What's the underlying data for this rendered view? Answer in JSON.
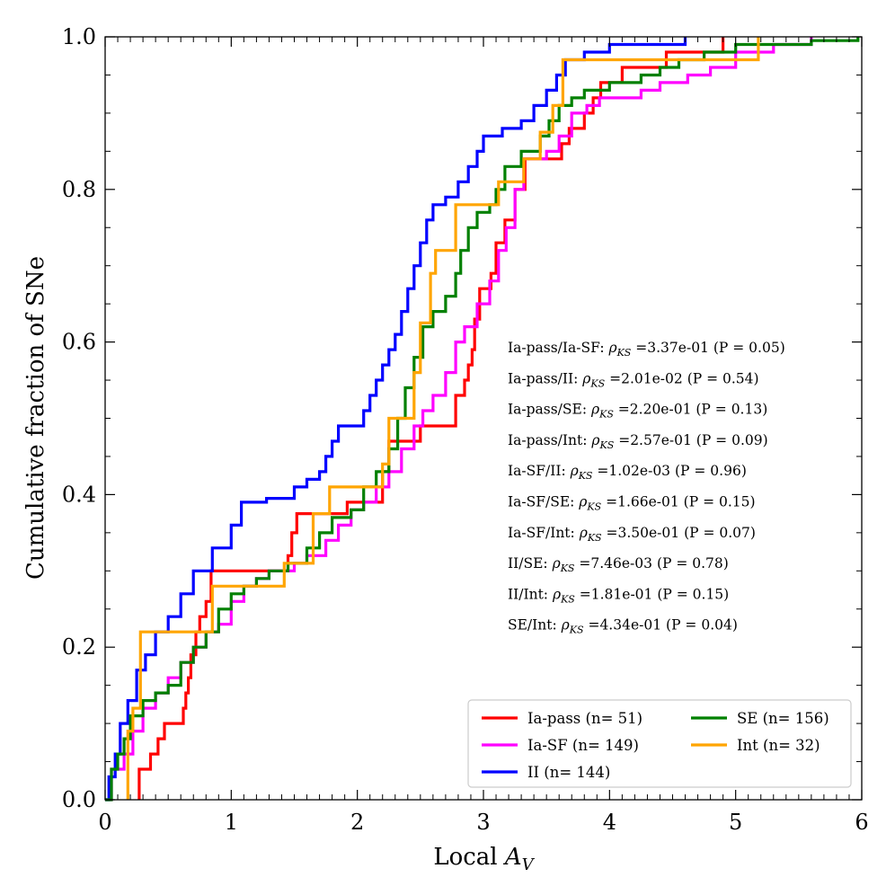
{
  "chart_data": {
    "type": "line",
    "subtype": "step-ecdf",
    "title": "",
    "xlabel_text": "Local ",
    "xlabel_symbol": "A",
    "xlabel_sub": "V",
    "ylabel": "Cumulative fraction of SNe",
    "xlim": [
      0,
      6
    ],
    "ylim": [
      0,
      1
    ],
    "x_ticks": [
      0,
      1,
      2,
      3,
      4,
      5,
      6
    ],
    "x_tick_labels": [
      "0",
      "1",
      "2",
      "3",
      "4",
      "5",
      "6"
    ],
    "y_ticks": [
      0.0,
      0.2,
      0.4,
      0.6,
      0.8,
      1.0
    ],
    "y_tick_labels": [
      "0.0",
      "0.2",
      "0.4",
      "0.6",
      "0.8",
      "1.0"
    ],
    "grid": false,
    "legend_position": "bottom-right",
    "series": [
      {
        "name": "Ia-pass (n= 51)",
        "color": "#ff0000",
        "points": [
          [
            0.27,
            0
          ],
          [
            0.27,
            0.04
          ],
          [
            0.36,
            0.04
          ],
          [
            0.36,
            0.06
          ],
          [
            0.42,
            0.06
          ],
          [
            0.42,
            0.08
          ],
          [
            0.47,
            0.08
          ],
          [
            0.47,
            0.1
          ],
          [
            0.62,
            0.1
          ],
          [
            0.62,
            0.12
          ],
          [
            0.64,
            0.12
          ],
          [
            0.64,
            0.14
          ],
          [
            0.66,
            0.14
          ],
          [
            0.66,
            0.16
          ],
          [
            0.68,
            0.16
          ],
          [
            0.68,
            0.19
          ],
          [
            0.72,
            0.19
          ],
          [
            0.72,
            0.22
          ],
          [
            0.75,
            0.22
          ],
          [
            0.75,
            0.24
          ],
          [
            0.8,
            0.24
          ],
          [
            0.8,
            0.26
          ],
          [
            0.84,
            0.26
          ],
          [
            0.84,
            0.3
          ],
          [
            1.45,
            0.3
          ],
          [
            1.45,
            0.32
          ],
          [
            1.48,
            0.32
          ],
          [
            1.48,
            0.35
          ],
          [
            1.52,
            0.35
          ],
          [
            1.52,
            0.375
          ],
          [
            1.92,
            0.375
          ],
          [
            1.92,
            0.39
          ],
          [
            2.2,
            0.39
          ],
          [
            2.2,
            0.43
          ],
          [
            2.25,
            0.43
          ],
          [
            2.25,
            0.47
          ],
          [
            2.5,
            0.47
          ],
          [
            2.5,
            0.49
          ],
          [
            2.78,
            0.49
          ],
          [
            2.78,
            0.53
          ],
          [
            2.85,
            0.53
          ],
          [
            2.85,
            0.55
          ],
          [
            2.88,
            0.55
          ],
          [
            2.88,
            0.57
          ],
          [
            2.91,
            0.57
          ],
          [
            2.91,
            0.59
          ],
          [
            2.93,
            0.59
          ],
          [
            2.93,
            0.63
          ],
          [
            2.97,
            0.63
          ],
          [
            2.97,
            0.67
          ],
          [
            3.06,
            0.67
          ],
          [
            3.06,
            0.69
          ],
          [
            3.1,
            0.69
          ],
          [
            3.1,
            0.73
          ],
          [
            3.17,
            0.73
          ],
          [
            3.17,
            0.76
          ],
          [
            3.25,
            0.76
          ],
          [
            3.25,
            0.8
          ],
          [
            3.33,
            0.8
          ],
          [
            3.33,
            0.84
          ],
          [
            3.62,
            0.84
          ],
          [
            3.62,
            0.86
          ],
          [
            3.68,
            0.86
          ],
          [
            3.68,
            0.88
          ],
          [
            3.8,
            0.88
          ],
          [
            3.8,
            0.9
          ],
          [
            3.87,
            0.9
          ],
          [
            3.87,
            0.92
          ],
          [
            3.93,
            0.92
          ],
          [
            3.93,
            0.94
          ],
          [
            4.1,
            0.94
          ],
          [
            4.1,
            0.96
          ],
          [
            4.45,
            0.96
          ],
          [
            4.45,
            0.98
          ],
          [
            4.9,
            0.98
          ],
          [
            4.9,
            1.0
          ]
        ]
      },
      {
        "name": "Ia-SF (n= 149)",
        "color": "#ff00ff",
        "points": [
          [
            0.0,
            0
          ],
          [
            0.05,
            0.04
          ],
          [
            0.15,
            0.06
          ],
          [
            0.22,
            0.09
          ],
          [
            0.3,
            0.12
          ],
          [
            0.4,
            0.14
          ],
          [
            0.5,
            0.16
          ],
          [
            0.6,
            0.18
          ],
          [
            0.7,
            0.2
          ],
          [
            0.8,
            0.22
          ],
          [
            0.9,
            0.23
          ],
          [
            1.0,
            0.26
          ],
          [
            1.1,
            0.28
          ],
          [
            1.2,
            0.29
          ],
          [
            1.3,
            0.3
          ],
          [
            1.4,
            0.3
          ],
          [
            1.5,
            0.31
          ],
          [
            1.6,
            0.32
          ],
          [
            1.75,
            0.34
          ],
          [
            1.85,
            0.36
          ],
          [
            1.95,
            0.38
          ],
          [
            2.05,
            0.39
          ],
          [
            2.15,
            0.41
          ],
          [
            2.25,
            0.43
          ],
          [
            2.35,
            0.46
          ],
          [
            2.45,
            0.49
          ],
          [
            2.52,
            0.51
          ],
          [
            2.6,
            0.53
          ],
          [
            2.7,
            0.56
          ],
          [
            2.78,
            0.6
          ],
          [
            2.85,
            0.62
          ],
          [
            2.95,
            0.65
          ],
          [
            3.05,
            0.68
          ],
          [
            3.12,
            0.72
          ],
          [
            3.18,
            0.75
          ],
          [
            3.25,
            0.8
          ],
          [
            3.32,
            0.84
          ],
          [
            3.4,
            0.84
          ],
          [
            3.5,
            0.85
          ],
          [
            3.6,
            0.87
          ],
          [
            3.7,
            0.9
          ],
          [
            3.82,
            0.91
          ],
          [
            3.92,
            0.92
          ],
          [
            4.1,
            0.92
          ],
          [
            4.25,
            0.93
          ],
          [
            4.4,
            0.94
          ],
          [
            4.5,
            0.94
          ],
          [
            4.62,
            0.95
          ],
          [
            4.8,
            0.96
          ],
          [
            5.0,
            0.98
          ],
          [
            5.3,
            0.99
          ],
          [
            5.6,
            1.0
          ]
        ]
      },
      {
        "name": "II (n= 144)",
        "color": "#0000ff",
        "points": [
          [
            0.0,
            0
          ],
          [
            0.03,
            0.03
          ],
          [
            0.08,
            0.06
          ],
          [
            0.12,
            0.1
          ],
          [
            0.18,
            0.13
          ],
          [
            0.25,
            0.17
          ],
          [
            0.32,
            0.19
          ],
          [
            0.4,
            0.22
          ],
          [
            0.5,
            0.24
          ],
          [
            0.6,
            0.27
          ],
          [
            0.7,
            0.3
          ],
          [
            0.85,
            0.33
          ],
          [
            1.0,
            0.36
          ],
          [
            1.08,
            0.39
          ],
          [
            1.2,
            0.39
          ],
          [
            1.28,
            0.395
          ],
          [
            1.45,
            0.395
          ],
          [
            1.5,
            0.41
          ],
          [
            1.6,
            0.42
          ],
          [
            1.7,
            0.43
          ],
          [
            1.75,
            0.45
          ],
          [
            1.8,
            0.47
          ],
          [
            1.85,
            0.49
          ],
          [
            1.95,
            0.49
          ],
          [
            2.05,
            0.51
          ],
          [
            2.1,
            0.53
          ],
          [
            2.15,
            0.55
          ],
          [
            2.2,
            0.57
          ],
          [
            2.25,
            0.59
          ],
          [
            2.3,
            0.61
          ],
          [
            2.35,
            0.64
          ],
          [
            2.4,
            0.67
          ],
          [
            2.45,
            0.7
          ],
          [
            2.5,
            0.73
          ],
          [
            2.55,
            0.76
          ],
          [
            2.6,
            0.78
          ],
          [
            2.7,
            0.79
          ],
          [
            2.8,
            0.81
          ],
          [
            2.88,
            0.83
          ],
          [
            2.95,
            0.85
          ],
          [
            3.0,
            0.87
          ],
          [
            3.1,
            0.87
          ],
          [
            3.15,
            0.88
          ],
          [
            3.3,
            0.89
          ],
          [
            3.4,
            0.91
          ],
          [
            3.5,
            0.93
          ],
          [
            3.58,
            0.95
          ],
          [
            3.65,
            0.97
          ],
          [
            3.8,
            0.98
          ],
          [
            4.0,
            0.99
          ],
          [
            4.2,
            0.99
          ],
          [
            4.6,
            1.0
          ]
        ]
      },
      {
        "name": "SE (n= 156)",
        "color": "#008000",
        "points": [
          [
            0.0,
            0
          ],
          [
            0.05,
            0.04
          ],
          [
            0.1,
            0.06
          ],
          [
            0.15,
            0.08
          ],
          [
            0.2,
            0.11
          ],
          [
            0.3,
            0.13
          ],
          [
            0.4,
            0.14
          ],
          [
            0.5,
            0.15
          ],
          [
            0.6,
            0.18
          ],
          [
            0.7,
            0.2
          ],
          [
            0.8,
            0.22
          ],
          [
            0.9,
            0.25
          ],
          [
            1.0,
            0.27
          ],
          [
            1.1,
            0.28
          ],
          [
            1.2,
            0.29
          ],
          [
            1.3,
            0.3
          ],
          [
            1.45,
            0.31
          ],
          [
            1.6,
            0.33
          ],
          [
            1.7,
            0.35
          ],
          [
            1.8,
            0.37
          ],
          [
            1.95,
            0.38
          ],
          [
            2.05,
            0.41
          ],
          [
            2.15,
            0.43
          ],
          [
            2.25,
            0.46
          ],
          [
            2.32,
            0.5
          ],
          [
            2.38,
            0.54
          ],
          [
            2.45,
            0.58
          ],
          [
            2.52,
            0.62
          ],
          [
            2.6,
            0.64
          ],
          [
            2.7,
            0.66
          ],
          [
            2.78,
            0.69
          ],
          [
            2.82,
            0.72
          ],
          [
            2.88,
            0.75
          ],
          [
            2.95,
            0.77
          ],
          [
            3.05,
            0.78
          ],
          [
            3.1,
            0.8
          ],
          [
            3.17,
            0.83
          ],
          [
            3.3,
            0.85
          ],
          [
            3.45,
            0.87
          ],
          [
            3.52,
            0.89
          ],
          [
            3.6,
            0.91
          ],
          [
            3.7,
            0.92
          ],
          [
            3.8,
            0.93
          ],
          [
            4.0,
            0.94
          ],
          [
            4.25,
            0.95
          ],
          [
            4.4,
            0.96
          ],
          [
            4.55,
            0.97
          ],
          [
            4.75,
            0.98
          ],
          [
            5.0,
            0.99
          ],
          [
            5.6,
            0.995
          ],
          [
            5.97,
            1.0
          ]
        ]
      },
      {
        "name": "Int (n= 32)",
        "color": "#ffa500",
        "points": [
          [
            0.18,
            0
          ],
          [
            0.18,
            0.09
          ],
          [
            0.22,
            0.09
          ],
          [
            0.22,
            0.12
          ],
          [
            0.28,
            0.12
          ],
          [
            0.28,
            0.22
          ],
          [
            0.85,
            0.22
          ],
          [
            0.85,
            0.28
          ],
          [
            1.42,
            0.28
          ],
          [
            1.42,
            0.31
          ],
          [
            1.65,
            0.31
          ],
          [
            1.65,
            0.375
          ],
          [
            1.78,
            0.375
          ],
          [
            1.78,
            0.41
          ],
          [
            2.2,
            0.41
          ],
          [
            2.2,
            0.44
          ],
          [
            2.25,
            0.44
          ],
          [
            2.25,
            0.5
          ],
          [
            2.45,
            0.5
          ],
          [
            2.45,
            0.56
          ],
          [
            2.5,
            0.56
          ],
          [
            2.5,
            0.625
          ],
          [
            2.58,
            0.625
          ],
          [
            2.58,
            0.69
          ],
          [
            2.62,
            0.69
          ],
          [
            2.62,
            0.72
          ],
          [
            2.78,
            0.72
          ],
          [
            2.78,
            0.78
          ],
          [
            3.12,
            0.78
          ],
          [
            3.12,
            0.81
          ],
          [
            3.32,
            0.81
          ],
          [
            3.32,
            0.84
          ],
          [
            3.45,
            0.84
          ],
          [
            3.45,
            0.875
          ],
          [
            3.55,
            0.875
          ],
          [
            3.55,
            0.91
          ],
          [
            3.63,
            0.91
          ],
          [
            3.63,
            0.97
          ],
          [
            4.2,
            0.97
          ],
          [
            4.8,
            0.97
          ],
          [
            5.18,
            0.97
          ],
          [
            5.18,
            1.0
          ]
        ]
      }
    ],
    "annotations": [
      {
        "pair": "Ia-pass/Ia-SF:",
        "rho": "3.37e-01",
        "p": "(P = 0.05)"
      },
      {
        "pair": "Ia-pass/II:",
        "rho": "2.01e-02",
        "p": "(P = 0.54)"
      },
      {
        "pair": "Ia-pass/SE:",
        "rho": "2.20e-01",
        "p": "(P = 0.13)"
      },
      {
        "pair": "Ia-pass/Int:",
        "rho": "2.57e-01",
        "p": "(P = 0.09)"
      },
      {
        "pair": "Ia-SF/II:",
        "rho": "1.02e-03",
        "p": "(P = 0.96)"
      },
      {
        "pair": "Ia-SF/SE:",
        "rho": "1.66e-01",
        "p": "(P = 0.15)"
      },
      {
        "pair": "Ia-SF/Int:",
        "rho": "3.50e-01",
        "p": "(P = 0.07)"
      },
      {
        "pair": "II/SE:",
        "rho": "7.46e-03",
        "p": "(P = 0.78)"
      },
      {
        "pair": "II/Int:",
        "rho": "1.81e-01",
        "p": "(P = 0.15)"
      },
      {
        "pair": "SE/Int:",
        "rho": "4.34e-01",
        "p": "(P = 0.04)"
      }
    ],
    "rho_symbol": "ρ",
    "rho_sub": "KS",
    "rho_equals": "=",
    "legend_order": [
      0,
      3,
      1,
      4,
      2
    ]
  }
}
